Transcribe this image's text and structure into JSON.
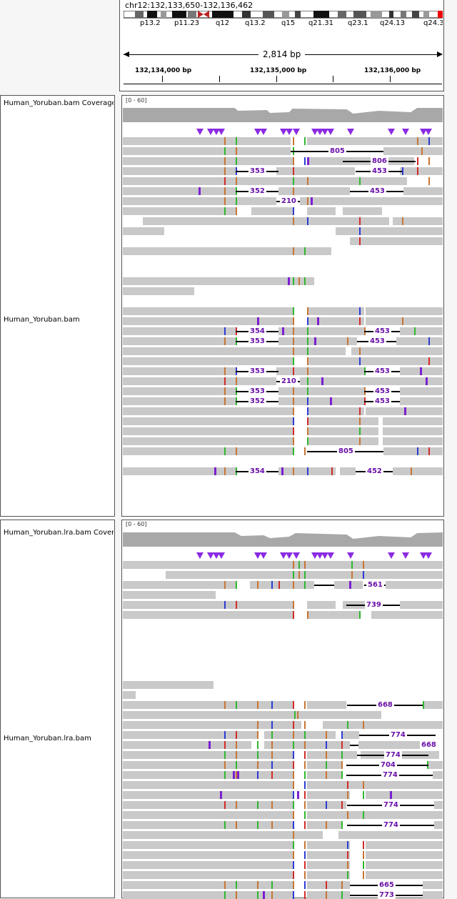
{
  "header": {
    "locus": "chr12:132,133,650-132,136,462",
    "span": "2,814 bp",
    "bands": [
      "p13.2",
      "p11.23",
      "q12",
      "q13.2",
      "q15",
      "q21.31",
      "q23.1",
      "q24.13",
      "q24.3"
    ],
    "ruler_ticks": [
      "132,134,000 bp",
      "132,135,000 bp",
      "132,136,000 bp"
    ]
  },
  "tracks": [
    {
      "name": "Human_Yoruban.bam Coverage",
      "range": "[0 - 60]"
    },
    {
      "name": "Human_Yoruban.bam"
    },
    {
      "name": "Human_Yoruban.lra.bam Coverage",
      "range": "[0 - 60]"
    },
    {
      "name": "Human_Yoruban.lra.bam"
    }
  ],
  "junctions_1": [
    "805",
    "806",
    "353",
    "453",
    "352",
    "453",
    "210",
    "354",
    "453",
    "353",
    "453",
    "353",
    "453",
    "210",
    "353",
    "453",
    "352",
    "453",
    "805",
    "354",
    "452"
  ],
  "junctions_2": [
    "561",
    "739",
    "668",
    "774",
    "668",
    "774",
    "704",
    "774",
    "774",
    "774",
    "665",
    "773"
  ],
  "colors": {
    "mismatch_orange": "#c87533",
    "mismatch_green": "#2eb82e",
    "mismatch_blue": "#2b3bd6",
    "mismatch_red": "#d42a2a",
    "insertion": "#7b1fd1",
    "read": "#c9c9c9",
    "coverage": "#a8a8a8"
  }
}
